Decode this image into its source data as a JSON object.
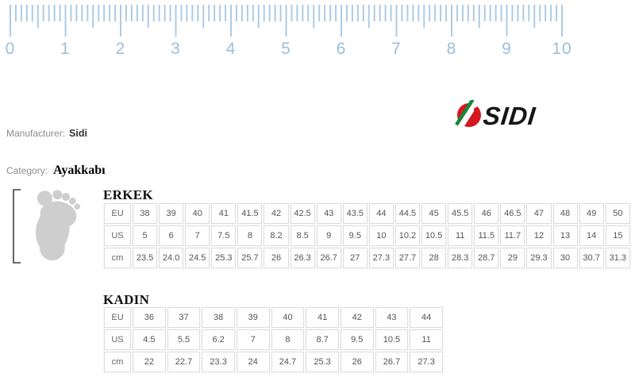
{
  "ruler": {
    "numbers": [
      "0",
      "1",
      "2",
      "3",
      "4",
      "5",
      "6",
      "7",
      "8",
      "9",
      "10"
    ],
    "units": 10,
    "subdivisions": 10,
    "tick_color": "#aecbe3",
    "number_color": "#9dbedb"
  },
  "brand": {
    "logo_text": "SIDI",
    "logo_red": "#d6171f",
    "logo_green": "#15873c",
    "logo_text_color": "#161616"
  },
  "manufacturer": {
    "label": "Manufacturer:",
    "value": "Sidi"
  },
  "category": {
    "label": "Category:",
    "value": "Ayakkabı"
  },
  "size_tables": [
    {
      "title": "ERKEK",
      "rows": [
        {
          "label": "EU",
          "values": [
            "38",
            "39",
            "40",
            "41",
            "41.5",
            "42",
            "42.5",
            "43",
            "43.5",
            "44",
            "44.5",
            "45",
            "45.5",
            "46",
            "46.5",
            "47",
            "48",
            "49",
            "50"
          ]
        },
        {
          "label": "US",
          "values": [
            "5",
            "6",
            "7",
            "7.5",
            "8",
            "8.2",
            "8.5",
            "9",
            "9.5",
            "10",
            "10.2",
            "10.5",
            "11",
            "11.5",
            "11.7",
            "12",
            "13",
            "14",
            "15"
          ]
        },
        {
          "label": "cm",
          "values": [
            "23.5",
            "24.0",
            "24.5",
            "25.3",
            "25.7",
            "26",
            "26.3",
            "26.7",
            "27",
            "27.3",
            "27.7",
            "28",
            "28.3",
            "28.7",
            "29",
            "29.3",
            "30",
            "30.7",
            "31.3"
          ]
        }
      ]
    },
    {
      "title": "KADIN",
      "rows": [
        {
          "label": "EU",
          "values": [
            "36",
            "37",
            "38",
            "39",
            "40",
            "41",
            "42",
            "43",
            "44"
          ]
        },
        {
          "label": "US",
          "values": [
            "4.5",
            "5.5",
            "6.2",
            "7",
            "8",
            "8.7",
            "9.5",
            "10.5",
            "11"
          ]
        },
        {
          "label": "cm",
          "values": [
            "22",
            "22.7",
            "23.3",
            "24",
            "24.7",
            "25.3",
            "26",
            "26.7",
            "27.3"
          ]
        }
      ]
    }
  ]
}
